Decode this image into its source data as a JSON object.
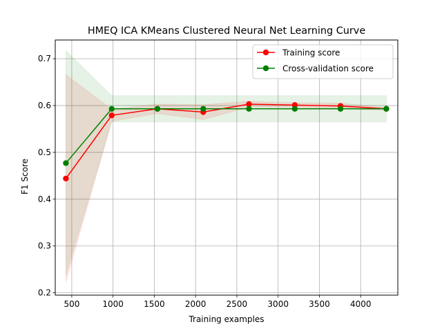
{
  "chart_data": {
    "type": "line",
    "title": "HMEQ ICA KMeans Clustered Neural Net Learning Curve",
    "xlabel": "Training examples",
    "ylabel": "F1 Score",
    "xlim": [
      300,
      4450
    ],
    "ylim": [
      0.195,
      0.74
    ],
    "xticks": [
      500,
      1000,
      1500,
      2000,
      2500,
      3000,
      3500,
      4000
    ],
    "yticks": [
      0.2,
      0.3,
      0.4,
      0.5,
      0.6,
      0.7
    ],
    "grid": true,
    "legend_position": "top-right",
    "x": [
      429,
      984,
      1538,
      2093,
      2647,
      3202,
      3756,
      4311
    ],
    "series": [
      {
        "name": "Training score",
        "color": "#ff0000",
        "marker": "circle",
        "values": [
          0.444,
          0.579,
          0.593,
          0.586,
          0.603,
          0.601,
          0.599,
          0.593
        ],
        "band_lower": [
          0.222,
          0.566,
          0.583,
          0.57,
          0.597,
          0.596,
          0.593,
          0.59
        ],
        "band_upper": [
          0.666,
          0.592,
          0.603,
          0.602,
          0.609,
          0.606,
          0.605,
          0.596
        ]
      },
      {
        "name": "Cross-validation score",
        "color": "#008000",
        "marker": "circle",
        "values": [
          0.477,
          0.593,
          0.593,
          0.593,
          0.593,
          0.593,
          0.593,
          0.593
        ],
        "band_lower": [
          0.237,
          0.565,
          0.565,
          0.565,
          0.565,
          0.565,
          0.565,
          0.565
        ],
        "band_upper": [
          0.717,
          0.621,
          0.621,
          0.621,
          0.621,
          0.621,
          0.621,
          0.621
        ]
      }
    ]
  }
}
